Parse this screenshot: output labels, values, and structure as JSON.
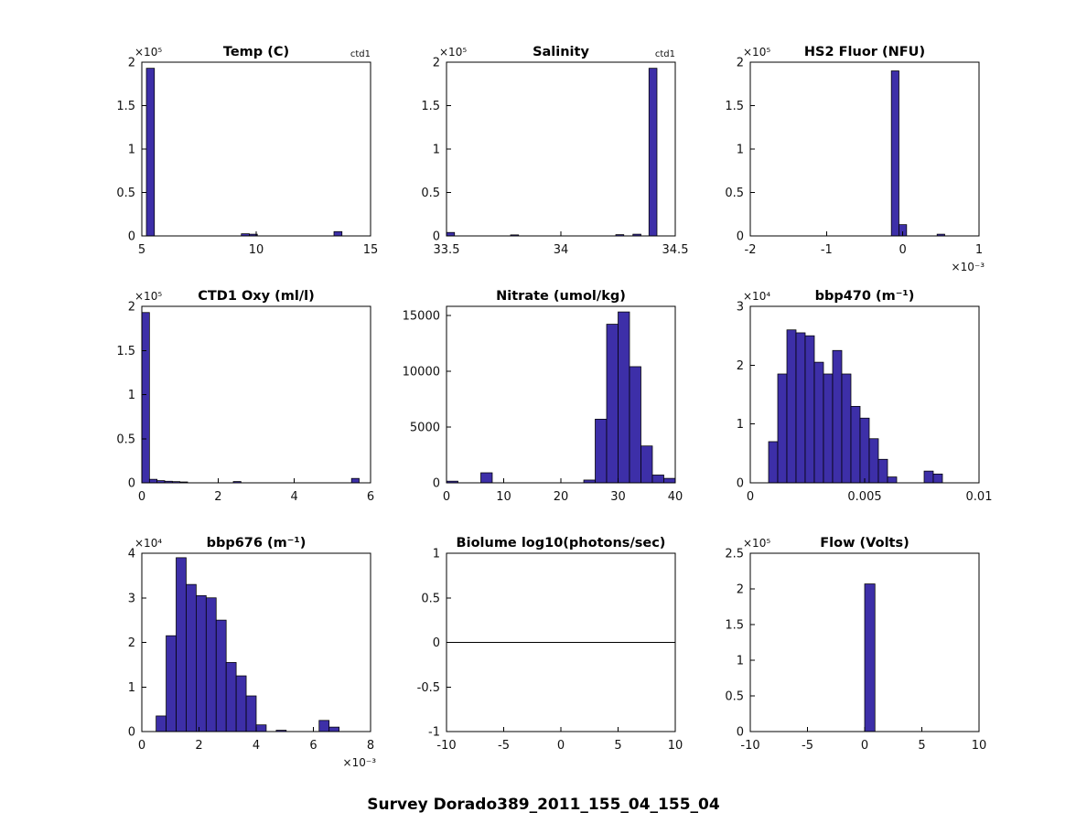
{
  "figure": {
    "title": "Survey Dorado389_2011_155_04_155_04",
    "background": "#ffffff"
  },
  "colors": {
    "bar_fill": "#3d2fa8",
    "bar_edge": "#000000",
    "axis": "#000000",
    "text": "#111111"
  },
  "chart_data": [
    {
      "type": "bar",
      "title": "Temp (C)",
      "corner_label": "ctd1",
      "x": {
        "min": 5,
        "max": 15,
        "tick_values": [
          5,
          10,
          15
        ],
        "tick_labels": [
          "5",
          "10",
          "15"
        ],
        "exponent": ""
      },
      "y": {
        "min": 0,
        "max": 200000,
        "tick_values": [
          0,
          50000,
          100000,
          150000,
          200000
        ],
        "tick_labels": [
          "0",
          "0.5",
          "1",
          "1.5",
          "2"
        ],
        "exponent": "×10⁵"
      },
      "bars": [
        [
          5.2,
          5.55,
          193000
        ],
        [
          9.35,
          9.7,
          2500
        ],
        [
          9.7,
          10.05,
          2000
        ],
        [
          13.4,
          13.75,
          5000
        ]
      ],
      "zero_line": false
    },
    {
      "type": "bar",
      "title": "Salinity",
      "corner_label": "ctd1",
      "x": {
        "min": 33.5,
        "max": 34.5,
        "tick_values": [
          33.5,
          34,
          34.5
        ],
        "tick_labels": [
          "33.5",
          "34",
          "34.5"
        ],
        "exponent": ""
      },
      "y": {
        "min": 0,
        "max": 200000,
        "tick_values": [
          0,
          50000,
          100000,
          150000,
          200000
        ],
        "tick_labels": [
          "0",
          "0.5",
          "1",
          "1.5",
          "2"
        ],
        "exponent": "×10⁵"
      },
      "bars": [
        [
          33.5,
          33.535,
          4000
        ],
        [
          33.78,
          33.815,
          1200
        ],
        [
          34.24,
          34.275,
          1500
        ],
        [
          34.315,
          34.35,
          2000
        ],
        [
          34.385,
          34.42,
          193000
        ]
      ],
      "zero_line": false
    },
    {
      "type": "bar",
      "title": "HS2 Fluor (NFU)",
      "corner_label": "",
      "x": {
        "min": -0.002,
        "max": 0.001,
        "tick_values": [
          -0.002,
          -0.001,
          0,
          0.001
        ],
        "tick_labels": [
          "-2",
          "-1",
          "0",
          "1"
        ],
        "exponent": "×10⁻³"
      },
      "y": {
        "min": 0,
        "max": 200000,
        "tick_values": [
          0,
          50000,
          100000,
          150000,
          200000
        ],
        "tick_labels": [
          "0",
          "0.5",
          "1",
          "1.5",
          "2"
        ],
        "exponent": "×10⁵"
      },
      "bars": [
        [
          -0.00015,
          -5e-05,
          190000
        ],
        [
          -5e-05,
          5e-05,
          13000
        ],
        [
          0.00045,
          0.00055,
          2000
        ]
      ],
      "zero_line": false
    },
    {
      "type": "bar",
      "title": "CTD1 Oxy (ml/l)",
      "corner_label": "",
      "x": {
        "min": 0,
        "max": 6,
        "tick_values": [
          0,
          2,
          4,
          6
        ],
        "tick_labels": [
          "0",
          "2",
          "4",
          "6"
        ],
        "exponent": ""
      },
      "y": {
        "min": 0,
        "max": 200000,
        "tick_values": [
          0,
          50000,
          100000,
          150000,
          200000
        ],
        "tick_labels": [
          "0",
          "0.5",
          "1",
          "1.5",
          "2"
        ],
        "exponent": "×10⁵"
      },
      "bars": [
        [
          0,
          0.2,
          193000
        ],
        [
          0.2,
          0.4,
          4000
        ],
        [
          0.4,
          0.6,
          2500
        ],
        [
          0.6,
          0.8,
          1800
        ],
        [
          0.8,
          1,
          1400
        ],
        [
          1,
          1.2,
          1000
        ],
        [
          2.4,
          2.6,
          1500
        ],
        [
          5.5,
          5.7,
          5000
        ]
      ],
      "zero_line": false
    },
    {
      "type": "bar",
      "title": "Nitrate (umol/kg)",
      "corner_label": "",
      "x": {
        "min": 0,
        "max": 40,
        "tick_values": [
          0,
          10,
          20,
          30,
          40
        ],
        "tick_labels": [
          "0",
          "10",
          "20",
          "30",
          "40"
        ],
        "exponent": ""
      },
      "y": {
        "min": 0,
        "max": 15800,
        "tick_values": [
          0,
          5000,
          10000,
          15000
        ],
        "tick_labels": [
          "0",
          "5000",
          "10000",
          "15000"
        ],
        "exponent": ""
      },
      "bars": [
        [
          0,
          2,
          150
        ],
        [
          6,
          8,
          900
        ],
        [
          24,
          26,
          250
        ],
        [
          26,
          28,
          5700
        ],
        [
          28,
          30,
          14200
        ],
        [
          30,
          32,
          15300
        ],
        [
          32,
          34,
          10400
        ],
        [
          34,
          36,
          3300
        ],
        [
          36,
          38,
          700
        ],
        [
          38,
          40,
          400
        ]
      ],
      "zero_line": false
    },
    {
      "type": "bar",
      "title": "bbp470 (m⁻¹)",
      "corner_label": "",
      "x": {
        "min": 0,
        "max": 0.01,
        "tick_values": [
          0,
          0.005,
          0.01
        ],
        "tick_labels": [
          "0",
          "0.005",
          "0.01"
        ],
        "exponent": ""
      },
      "y": {
        "min": 0,
        "max": 30000,
        "tick_values": [
          0,
          10000,
          20000,
          30000
        ],
        "tick_labels": [
          "0",
          "1",
          "2",
          "3"
        ],
        "exponent": "×10⁴"
      },
      "bars": [
        [
          0.0008,
          0.0012,
          7000
        ],
        [
          0.0012,
          0.0016,
          18500
        ],
        [
          0.0016,
          0.002,
          26000
        ],
        [
          0.002,
          0.0024,
          25500
        ],
        [
          0.0024,
          0.0028,
          25000
        ],
        [
          0.0028,
          0.0032,
          20500
        ],
        [
          0.0032,
          0.0036,
          18500
        ],
        [
          0.0036,
          0.004,
          22500
        ],
        [
          0.004,
          0.0044,
          18500
        ],
        [
          0.0044,
          0.0048,
          13000
        ],
        [
          0.0048,
          0.0052,
          11000
        ],
        [
          0.0052,
          0.0056,
          7500
        ],
        [
          0.0056,
          0.006,
          4000
        ],
        [
          0.006,
          0.0064,
          1000
        ],
        [
          0.0076,
          0.008,
          2000
        ],
        [
          0.008,
          0.0084,
          1500
        ]
      ],
      "zero_line": false
    },
    {
      "type": "bar",
      "title": "bbp676 (m⁻¹)",
      "corner_label": "",
      "x": {
        "min": 0,
        "max": 0.008,
        "tick_values": [
          0,
          0.002,
          0.004,
          0.006,
          0.008
        ],
        "tick_labels": [
          "0",
          "2",
          "4",
          "6",
          "8"
        ],
        "exponent": "×10⁻³"
      },
      "y": {
        "min": 0,
        "max": 40000,
        "tick_values": [
          0,
          10000,
          20000,
          30000,
          40000
        ],
        "tick_labels": [
          "0",
          "1",
          "2",
          "3",
          "4"
        ],
        "exponent": "×10⁴"
      },
      "bars": [
        [
          0.0005,
          0.00085,
          3500
        ],
        [
          0.00085,
          0.0012,
          21500
        ],
        [
          0.0012,
          0.00155,
          39000
        ],
        [
          0.00155,
          0.0019,
          33000
        ],
        [
          0.0019,
          0.00225,
          30500
        ],
        [
          0.00225,
          0.0026,
          30000
        ],
        [
          0.0026,
          0.00295,
          25000
        ],
        [
          0.00295,
          0.0033,
          15500
        ],
        [
          0.0033,
          0.00365,
          12500
        ],
        [
          0.00365,
          0.004,
          8000
        ],
        [
          0.004,
          0.00435,
          1500
        ],
        [
          0.0047,
          0.00505,
          300
        ],
        [
          0.0062,
          0.00655,
          2500
        ],
        [
          0.00655,
          0.0069,
          1000
        ]
      ],
      "zero_line": false
    },
    {
      "type": "bar",
      "title": "Biolume log10(photons/sec)",
      "corner_label": "",
      "x": {
        "min": -10,
        "max": 10,
        "tick_values": [
          -10,
          -5,
          0,
          5,
          10
        ],
        "tick_labels": [
          "-10",
          "-5",
          "0",
          "5",
          "10"
        ],
        "exponent": ""
      },
      "y": {
        "min": -1,
        "max": 1,
        "tick_values": [
          -1,
          -0.5,
          0,
          0.5,
          1
        ],
        "tick_labels": [
          "-1",
          "-0.5",
          "0",
          "0.5",
          "1"
        ],
        "exponent": ""
      },
      "bars": [],
      "zero_line": true
    },
    {
      "type": "bar",
      "title": "Flow (Volts)",
      "corner_label": "",
      "x": {
        "min": -10,
        "max": 10,
        "tick_values": [
          -10,
          -5,
          0,
          5,
          10
        ],
        "tick_labels": [
          "-10",
          "-5",
          "0",
          "5",
          "10"
        ],
        "exponent": ""
      },
      "y": {
        "min": 0,
        "max": 250000,
        "tick_values": [
          0,
          50000,
          100000,
          150000,
          200000,
          250000
        ],
        "tick_labels": [
          "0",
          "0.5",
          "1",
          "1.5",
          "2",
          "2.5"
        ],
        "exponent": "×10⁵"
      },
      "bars": [
        [
          0,
          0.9,
          207000
        ]
      ],
      "zero_line": false
    }
  ]
}
